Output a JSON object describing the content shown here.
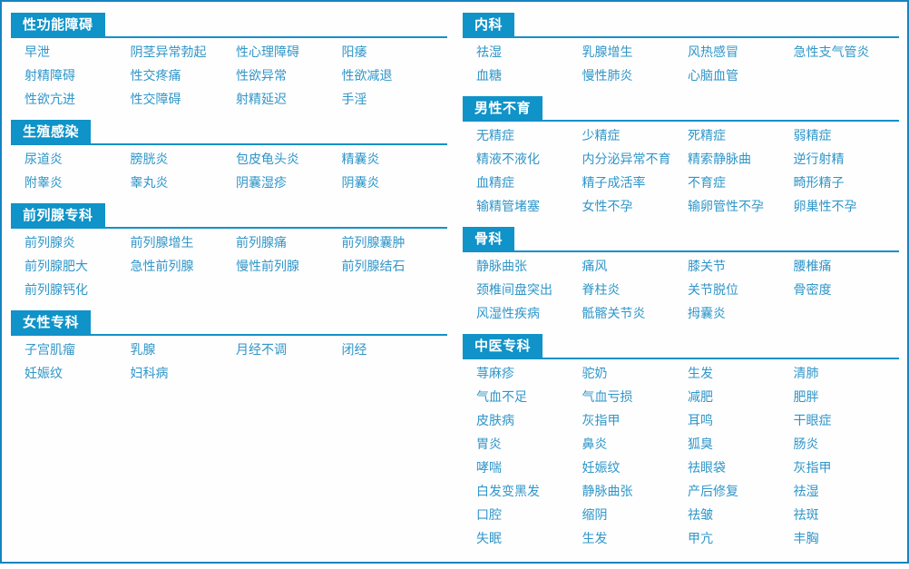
{
  "theme": {
    "tab_bg": "#0f93c8",
    "tab_text": "#ffffff",
    "link_color": "#3096c8",
    "underline_color": "#1590c8",
    "border_color": "#1583c0",
    "panel_bg": "#fefeff"
  },
  "columns": [
    {
      "id": "left",
      "sections": [
        {
          "title": "性功能障碍",
          "items": [
            "早泄",
            "阴茎异常勃起",
            "性心理障碍",
            "阳痿",
            "射精障碍",
            "性交疼痛",
            "性欲异常",
            "性欲减退",
            "性欲亢进",
            "性交障碍",
            "射精延迟",
            "手淫"
          ]
        },
        {
          "title": "生殖感染",
          "items": [
            "尿道炎",
            "膀胱炎",
            "包皮龟头炎",
            "精囊炎",
            "附睾炎",
            "睾丸炎",
            "阴囊湿疹",
            "阴囊炎"
          ]
        },
        {
          "title": "前列腺专科",
          "items": [
            "前列腺炎",
            "前列腺增生",
            "前列腺痛",
            "前列腺囊肿",
            "前列腺肥大",
            "急性前列腺",
            "慢性前列腺",
            "前列腺结石",
            "前列腺钙化"
          ]
        },
        {
          "title": "女性专科",
          "items": [
            "子宫肌瘤",
            "乳腺",
            "月经不调",
            "闭经",
            "妊娠纹",
            "妇科病"
          ]
        }
      ]
    },
    {
      "id": "right",
      "sections": [
        {
          "title": "内科",
          "items": [
            "祛湿",
            "乳腺增生",
            "风热感冒",
            "急性支气管炎",
            "血糖",
            "慢性肺炎",
            "心脑血管"
          ]
        },
        {
          "title": "男性不育",
          "items": [
            "无精症",
            "少精症",
            "死精症",
            "弱精症",
            "精液不液化",
            "内分泌异常不育",
            "精索静脉曲",
            "逆行射精",
            "血精症",
            "精子成活率",
            "不育症",
            "畸形精子",
            "输精管堵塞",
            "女性不孕",
            "输卵管性不孕",
            "卵巢性不孕"
          ]
        },
        {
          "title": "骨科",
          "items": [
            "静脉曲张",
            "痛风",
            "膝关节",
            "腰椎痛",
            "颈椎间盘突出",
            "脊柱炎",
            "关节脱位",
            "骨密度",
            "风湿性疾病",
            "骶髂关节炎",
            "拇囊炎"
          ]
        },
        {
          "title": "中医专科",
          "items": [
            "荨麻疹",
            "驼奶",
            "生发",
            "清肺",
            "气血不足",
            "气血亏损",
            "减肥",
            "肥胖",
            "皮肤病",
            "灰指甲",
            "耳鸣",
            "干眼症",
            "胃炎",
            "鼻炎",
            "狐臭",
            "肠炎",
            "哮喘",
            "妊娠纹",
            "祛眼袋",
            "灰指甲",
            "白发变黑发",
            "静脉曲张",
            "产后修复",
            "祛湿",
            "口腔",
            "缩阴",
            "祛皱",
            "祛斑",
            "失眠",
            "生发",
            "甲亢",
            "丰胸"
          ]
        }
      ]
    }
  ]
}
